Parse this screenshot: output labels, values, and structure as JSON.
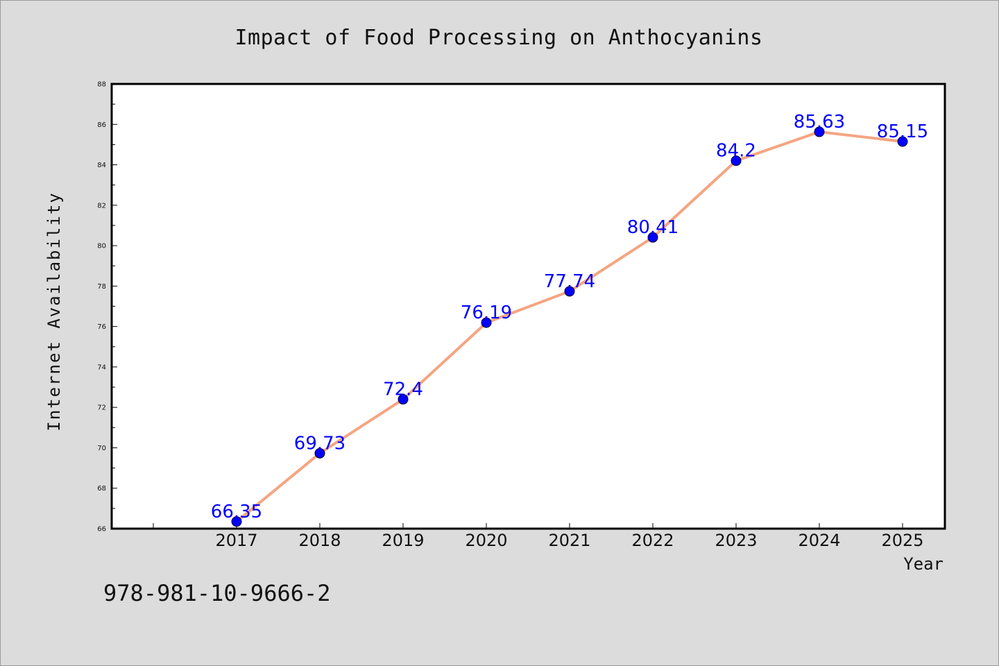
{
  "chart_data": {
    "type": "line",
    "title": "Impact of Food Processing on Anthocyanins",
    "xlabel": "Year",
    "ylabel": "Internet Availability",
    "categories": [
      "2017",
      "2018",
      "2019",
      "2020",
      "2021",
      "2022",
      "2023",
      "2024",
      "2025"
    ],
    "series": [
      {
        "values": [
          66.35,
          69.73,
          72.4,
          76.19,
          77.74,
          80.41,
          84.2,
          85.63,
          85.15
        ],
        "data_labels": [
          "66.35",
          "69.73",
          "72.4",
          "76.19",
          "77.74",
          "80.41",
          "84.2",
          "85.63",
          "85.15"
        ]
      }
    ],
    "ylim": [
      66,
      88
    ],
    "yticks": [
      "66",
      "68",
      "70",
      "72",
      "74",
      "76",
      "78",
      "80",
      "82",
      "84",
      "86",
      "88"
    ],
    "grid": false,
    "legend": "none"
  },
  "footnote": "978-981-10-9666-2",
  "colors": {
    "background": "#dcdcdc",
    "plot_background": "#ffffff",
    "line": "#f4a582",
    "marker": "#0000ff",
    "data_label": "#0000ff",
    "axis": "#000000"
  }
}
